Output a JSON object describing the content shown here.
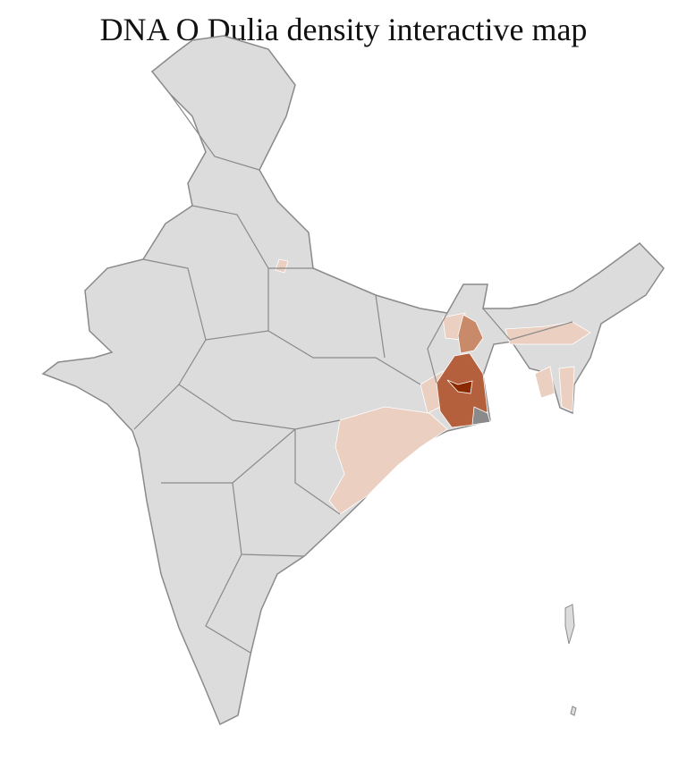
{
  "title": "DNA O Dulia density interactive map",
  "colors": {
    "no_data": "#dcdcdc",
    "border_district": "#ffffff",
    "border_state": "#8a8a8a",
    "low": "#ebcfc1",
    "medium": "#c98a6a",
    "high": "#b5603c",
    "highest": "#8b2a00",
    "unmatched": "#8a8a8a"
  }
}
